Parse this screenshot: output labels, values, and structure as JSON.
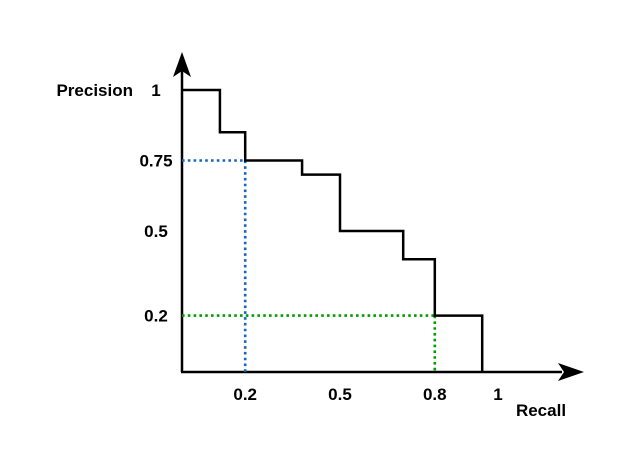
{
  "page": {
    "background": "#FFFFFF"
  },
  "chart_data": {
    "type": "line",
    "line_style": "step",
    "title": "",
    "xlabel": "Recall",
    "ylabel": "Precision",
    "xlim": [
      0,
      1.27
    ],
    "ylim": [
      0,
      1.14
    ],
    "grid": false,
    "legend": "none",
    "axis_color": "#000000",
    "background_color": "#FFFFFF",
    "series": [
      {
        "name": "precision-recall-step-curve",
        "color": "#000000",
        "points": [
          [
            0,
            1
          ],
          [
            0.12,
            1
          ],
          [
            0.12,
            0.85
          ],
          [
            0.2,
            0.85
          ],
          [
            0.2,
            0.75
          ],
          [
            0.38,
            0.75
          ],
          [
            0.38,
            0.7
          ],
          [
            0.5,
            0.7
          ],
          [
            0.5,
            0.5
          ],
          [
            0.7,
            0.5
          ],
          [
            0.7,
            0.4
          ],
          [
            0.8,
            0.4
          ],
          [
            0.8,
            0.2
          ],
          [
            0.95,
            0.2
          ],
          [
            0.95,
            0
          ]
        ]
      }
    ],
    "x_ticks": [
      {
        "label": "0.2",
        "value": 0.2,
        "color": "#1565C2"
      },
      {
        "label": "0.5",
        "value": 0.5,
        "color": "#000000"
      },
      {
        "label": "0.8",
        "value": 0.8,
        "color": "#009B00"
      },
      {
        "label": "1",
        "value": 1,
        "color": "#000000"
      }
    ],
    "y_ticks": [
      {
        "label": "1",
        "value": 1,
        "color": "#000000"
      },
      {
        "label": "0.75",
        "value": 0.75,
        "color": "#1565C2"
      },
      {
        "label": "0.5",
        "value": 0.5,
        "color": "#000000"
      },
      {
        "label": "0.2",
        "value": 0.2,
        "color": "#009B00"
      }
    ],
    "guides": [
      {
        "name": "blue-guide",
        "color": "#1565C2",
        "recall": 0.2,
        "precision": 0.75,
        "style": "dotted"
      },
      {
        "name": "green-guide",
        "color": "#009B00",
        "recall": 0.8,
        "precision": 0.2,
        "style": "dotted"
      }
    ]
  }
}
